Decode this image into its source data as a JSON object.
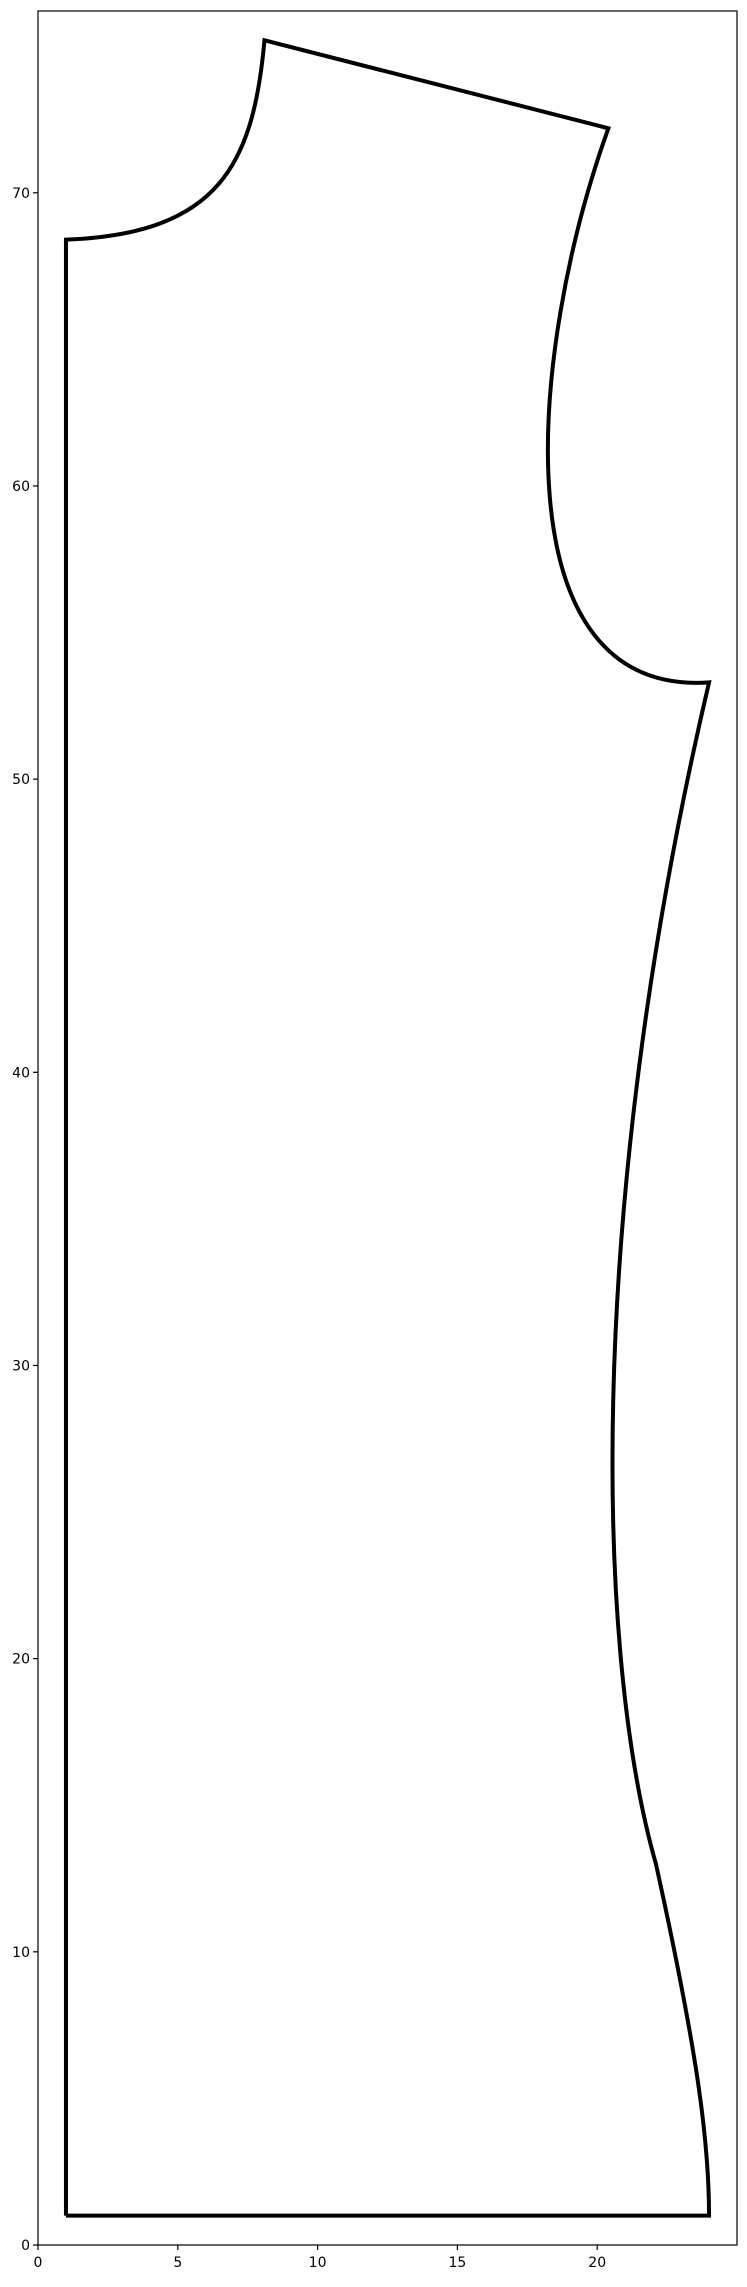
{
  "chart_data": {
    "type": "line",
    "title": "",
    "xlabel": "",
    "ylabel": "",
    "xlim": [
      0,
      25
    ],
    "ylim": [
      0,
      76.2
    ],
    "grid": false,
    "x_ticks": [
      0,
      5,
      10,
      15,
      20
    ],
    "y_ticks": [
      0,
      10,
      20,
      30,
      40,
      50,
      60,
      70
    ],
    "series": [
      {
        "segments": [
          {
            "kind": "line",
            "points": [
              [
                1.0,
                1.0
              ],
              [
                1.0,
                68.4
              ]
            ]
          },
          {
            "kind": "cubic",
            "points": [
              [
                1.0,
                68.4
              ],
              [
                6.5,
                68.6
              ],
              [
                7.7,
                71.0
              ],
              [
                8.1,
                75.2
              ]
            ]
          },
          {
            "kind": "line",
            "points": [
              [
                8.1,
                75.2
              ],
              [
                20.4,
                72.2
              ]
            ]
          },
          {
            "kind": "cubic",
            "points": [
              [
                20.4,
                72.2
              ],
              [
                17.5,
                64.5
              ],
              [
                16.5,
                52.8
              ],
              [
                24.0,
                53.3
              ]
            ]
          },
          {
            "kind": "cubic",
            "points": [
              [
                24.0,
                53.3
              ],
              [
                19.5,
                35.0
              ],
              [
                20.0,
                20.0
              ],
              [
                22.1,
                13.0
              ]
            ]
          },
          {
            "kind": "cubic",
            "points": [
              [
                22.1,
                13.0
              ],
              [
                23.6,
                6.5
              ],
              [
                24.0,
                3.5
              ],
              [
                24.0,
                1.0
              ]
            ]
          },
          {
            "kind": "line",
            "points": [
              [
                24.0,
                1.0
              ],
              [
                1.0,
                1.0
              ]
            ]
          }
        ]
      }
    ]
  },
  "style": {
    "line_color": "#000000",
    "axis_color": "#000000",
    "background": "#ffffff"
  }
}
